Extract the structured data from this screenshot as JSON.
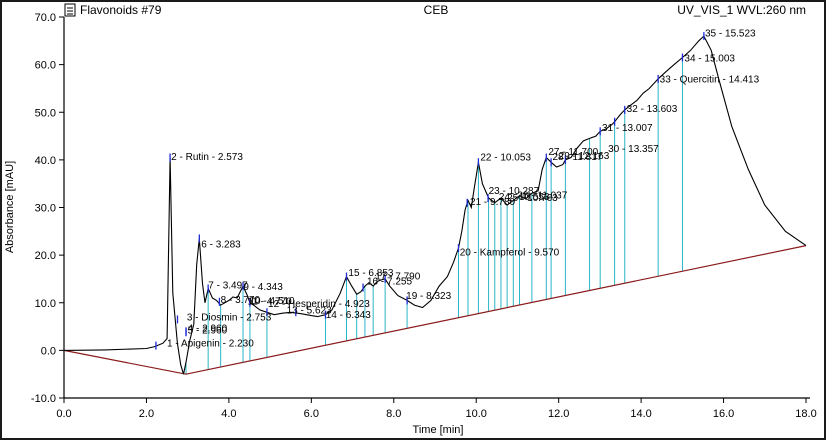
{
  "header": {
    "icon": "document-icon",
    "left_title": "Flavonoids #79",
    "center_title": "CEB",
    "right_title": "UV_VIS_1 WVL:260 nm"
  },
  "colors": {
    "trace": "#000000",
    "baseline": "#8b1a1a",
    "drop_lines": "#29b6c6",
    "markers": "#1f2bd6",
    "axis": "#000000"
  },
  "chart_data": {
    "type": "line",
    "title": "CEB",
    "xlabel": "Time [min]",
    "ylabel": "Absorbance [mAU]",
    "xlim": [
      0.0,
      18.0
    ],
    "ylim": [
      -10.0,
      70.0
    ],
    "xticks": [
      "0.0",
      "2.0",
      "4.0",
      "6.0",
      "8.0",
      "10.0",
      "12.0",
      "14.0",
      "16.0",
      "18.0"
    ],
    "yticks": [
      "-10.0",
      "0.0",
      "10.0",
      "20.0",
      "30.0",
      "40.0",
      "50.0",
      "60.0",
      "70.0"
    ],
    "grid": false,
    "trace": {
      "x": [
        0.0,
        1.0,
        2.0,
        2.2,
        2.4,
        2.5,
        2.573,
        2.64,
        2.75,
        2.83,
        2.9,
        2.96,
        3.05,
        3.15,
        3.22,
        3.283,
        3.36,
        3.42,
        3.497,
        3.6,
        3.7,
        3.8,
        3.9,
        4.0,
        4.1,
        4.2,
        4.343,
        4.45,
        4.51,
        4.6,
        4.75,
        4.923,
        5.1,
        5.3,
        5.5,
        5.75,
        6.0,
        6.15,
        6.343,
        6.5,
        6.7,
        6.853,
        6.98,
        7.1,
        7.2,
        7.3,
        7.4,
        7.5,
        7.6,
        7.7,
        7.79,
        7.9,
        8.1,
        8.323,
        8.5,
        8.7,
        8.9,
        9.1,
        9.3,
        9.45,
        9.57,
        9.65,
        9.73,
        9.8,
        9.88,
        9.95,
        10.053,
        10.15,
        10.3,
        10.45,
        10.6,
        10.75,
        10.9,
        11.05,
        11.2,
        11.35,
        11.5,
        11.6,
        11.7,
        11.817,
        11.95,
        12.1,
        12.163,
        12.3,
        12.45,
        12.6,
        12.75,
        12.9,
        13.007,
        13.15,
        13.3,
        13.357,
        13.493,
        13.603,
        13.75,
        13.9,
        14.05,
        14.2,
        14.413,
        14.6,
        14.8,
        15.003,
        15.2,
        15.4,
        15.523,
        15.7,
        15.9,
        16.2,
        16.6,
        17.0,
        17.5,
        18.0
      ],
      "y": [
        0.0,
        0.1,
        0.4,
        0.8,
        1.5,
        2.5,
        40.5,
        12.0,
        1.5,
        -3.0,
        -5.0,
        -2.5,
        2.0,
        5.5,
        18.0,
        23.5,
        14.0,
        10.0,
        13.0,
        11.0,
        10.5,
        9.5,
        10.0,
        10.5,
        11.2,
        11.0,
        13.5,
        11.5,
        10.0,
        9.5,
        8.5,
        8.0,
        7.5,
        7.8,
        8.0,
        7.7,
        7.3,
        7.1,
        7.5,
        8.5,
        12.0,
        15.5,
        13.5,
        11.8,
        12.3,
        13.5,
        14.2,
        13.5,
        14.5,
        14.8,
        15.0,
        13.5,
        11.5,
        10.5,
        9.5,
        9.0,
        10.5,
        13.5,
        15.5,
        18.5,
        21.5,
        25.0,
        29.5,
        31.5,
        30.0,
        34.0,
        39.5,
        35.0,
        32.0,
        31.0,
        32.0,
        30.5,
        31.5,
        32.5,
        31.8,
        33.0,
        33.5,
        38.0,
        40.5,
        39.5,
        38.5,
        39.0,
        40.0,
        40.5,
        42.5,
        44.0,
        44.5,
        45.0,
        46.0,
        46.5,
        47.5,
        48.0,
        49.5,
        50.5,
        51.5,
        52.5,
        54.0,
        55.0,
        57.0,
        58.5,
        60.0,
        61.5,
        63.0,
        65.0,
        66.0,
        63.0,
        56.5,
        47.0,
        38.0,
        30.5,
        25.0,
        22.0
      ]
    },
    "baseline": {
      "x": [
        0.0,
        2.96,
        18.0
      ],
      "y": [
        0.0,
        -5.0,
        22.0
      ]
    },
    "drop_lines_x": [
      2.96,
      3.497,
      3.8,
      4.343,
      4.51,
      4.923,
      6.343,
      6.853,
      7.1,
      7.3,
      7.5,
      7.79,
      8.323,
      9.57,
      9.8,
      10.053,
      10.3,
      10.45,
      10.6,
      10.75,
      10.9,
      11.05,
      11.35,
      11.7,
      11.817,
      12.163,
      12.75,
      13.007,
      13.357,
      13.603,
      14.413,
      15.003
    ],
    "peaks": [
      {
        "label": "1 - Apigenin - 2.230",
        "x": 2.23,
        "y": 1.0
      },
      {
        "label": "2 - Rutin - 2.573",
        "x": 2.573,
        "y": 40.5
      },
      {
        "label": "3 - Diosmin - 2.753",
        "x": 2.753,
        "y": 6.5
      },
      {
        "label": "4 - 2.960",
        "x": 2.96,
        "y": 4.0
      },
      {
        "label": "5 - 2.960",
        "x": 2.96,
        "y": 3.8
      },
      {
        "label": "6 - 3.283",
        "x": 3.283,
        "y": 23.5
      },
      {
        "label": "7 - 3.497",
        "x": 3.497,
        "y": 13.0
      },
      {
        "label": "8 - 3.770",
        "x": 3.77,
        "y": 10.2
      },
      {
        "label": "9 - 4.343",
        "x": 4.343,
        "y": 13.5
      },
      {
        "label": "10 - 4.510",
        "x": 4.51,
        "y": 10.0
      },
      {
        "label": "12 - Hesperidin - 4.923",
        "x": 4.923,
        "y": 8.0
      },
      {
        "label": "13 - 5.623",
        "x": 5.623,
        "y": 8.0
      },
      {
        "label": "14 - 6.343",
        "x": 6.343,
        "y": 7.5
      },
      {
        "label": "15 - 6.853",
        "x": 6.853,
        "y": 15.5
      },
      {
        "label": "16 - 7.255",
        "x": 7.255,
        "y": 13.2
      },
      {
        "label": "17 - 7.790",
        "x": 7.79,
        "y": 15.0
      },
      {
        "label": "19 - 8.323",
        "x": 8.323,
        "y": 10.5
      },
      {
        "label": "20 - Kampferol - 9.570",
        "x": 9.57,
        "y": 21.5
      },
      {
        "label": "21 - 9.780",
        "x": 9.78,
        "y": 31.0
      },
      {
        "label": "22 - 10.053",
        "x": 10.053,
        "y": 39.5
      },
      {
        "label": "23 - 10.287",
        "x": 10.287,
        "y": 32.0
      },
      {
        "label": "27 - 11.700",
        "x": 11.7,
        "y": 40.5
      },
      {
        "label": "28 - 11.817",
        "x": 11.817,
        "y": 39.5
      },
      {
        "label": "29 - 12.163",
        "x": 12.163,
        "y": 40.0
      },
      {
        "label": "30 - 13.357",
        "x": 13.357,
        "y": 48.0
      },
      {
        "label": "31 - 13.007",
        "x": 13.007,
        "y": 46.0
      },
      {
        "label": "32 - 13.603",
        "x": 13.603,
        "y": 50.5
      },
      {
        "label": "33 - Quercitin - 14.413",
        "x": 14.413,
        "y": 57.0
      },
      {
        "label": "34 - 15.003",
        "x": 15.003,
        "y": 61.5
      },
      {
        "label": "35 - 15.523",
        "x": 15.523,
        "y": 66.0
      }
    ],
    "annotations": [
      {
        "text": "1 - Apigenin - 2.230",
        "x": 2.5,
        "y": 1.4
      },
      {
        "text": "2 - Rutin - 2.573",
        "x": 2.6,
        "y": 40.6
      },
      {
        "text": "3 - Diosmin - 2.753",
        "x": 2.98,
        "y": 6.9
      },
      {
        "text": "4 - 2.960",
        "x": 3.0,
        "y": 4.6
      },
      {
        "text": "5 - 2.960",
        "x": 3.0,
        "y": 4.2
      },
      {
        "text": "6 - 3.283",
        "x": 3.33,
        "y": 22.2
      },
      {
        "text": "7 - 3.497",
        "x": 3.5,
        "y": 13.6
      },
      {
        "text": "8 - 3.770",
        "x": 3.8,
        "y": 10.6
      },
      {
        "text": "9 - 4.343",
        "x": 4.35,
        "y": 13.3
      },
      {
        "text": "10 - 4.510",
        "x": 4.5,
        "y": 10.4
      },
      {
        "text": "11 - 4.770",
        "x": 4.45,
        "y": 10.3
      },
      {
        "text": "12 - Hesperidin - 4.923",
        "x": 4.95,
        "y": 9.7
      },
      {
        "text": "13 - 5.623",
        "x": 5.4,
        "y": 8.4
      },
      {
        "text": "14 - 6.343",
        "x": 6.35,
        "y": 7.4
      },
      {
        "text": "15 - 6.853",
        "x": 6.9,
        "y": 16.2
      },
      {
        "text": "16 - 7.255",
        "x": 7.35,
        "y": 14.5
      },
      {
        "text": "17 - 7.790",
        "x": 7.55,
        "y": 15.5
      },
      {
        "text": "19 - 8.323",
        "x": 8.3,
        "y": 11.4
      },
      {
        "text": "20 - Kampferol - 9.570",
        "x": 9.6,
        "y": 20.5
      },
      {
        "text": "21 - 9.780",
        "x": 9.85,
        "y": 31.2
      },
      {
        "text": "22 - 10.053",
        "x": 10.1,
        "y": 40.5
      },
      {
        "text": "23 - 10.287",
        "x": 10.3,
        "y": 33.5
      },
      {
        "text": "24 - 10.553",
        "x": 10.55,
        "y": 32.2
      },
      {
        "text": "25 - 10.763",
        "x": 10.75,
        "y": 32.0
      },
      {
        "text": "26 - 11.037",
        "x": 11.0,
        "y": 32.5
      },
      {
        "text": "27 - 11.700",
        "x": 11.75,
        "y": 41.7
      },
      {
        "text": "28 - 11.817",
        "x": 11.85,
        "y": 40.6
      },
      {
        "text": "29 - 12.163",
        "x": 12.0,
        "y": 40.8
      },
      {
        "text": "30 - 13.357",
        "x": 13.2,
        "y": 42.3
      },
      {
        "text": "31 - 13.007",
        "x": 13.05,
        "y": 46.7
      },
      {
        "text": "32 - 13.603",
        "x": 13.65,
        "y": 50.7
      },
      {
        "text": "33 - Quercitin - 14.413",
        "x": 14.45,
        "y": 56.9
      },
      {
        "text": "34 - 15.003",
        "x": 15.05,
        "y": 61.3
      },
      {
        "text": "35 - 15.523",
        "x": 15.55,
        "y": 66.5
      }
    ],
    "label_texts": [
      "1 - Apigenin - 2.230",
      "2 - Rutin - 2.573",
      "3 - Diosmin - 2.753",
      "4 - 2.960",
      "5 - 2.960",
      "6 - 3.283",
      "7 - 3.497",
      "8 - 3.770",
      "9 - 4.343",
      "10 - 4.510",
      "11 - 4.770",
      "12 - Hesperidin - 4.923",
      "13 - 5.623",
      "14 - 6.343",
      "15 - 6.853",
      "16 - 7.255",
      "17 - 7.790",
      "19 - 8.323",
      "20 - Kampferol - 9.570",
      "21 - 9.780",
      "22 - 10.053",
      "23 - 10.287",
      "24 - 10.553",
      "25 - 10.763",
      "26 - 11.037",
      "27 - 11.700",
      "28 - 11.817",
      "29 - 12.163",
      "30 - 13.357",
      "31 - 13.007",
      "32 - 13.603",
      "33 - Quercitin - 14.413",
      "34 - 15.003",
      "35 - 15.523"
    ]
  }
}
